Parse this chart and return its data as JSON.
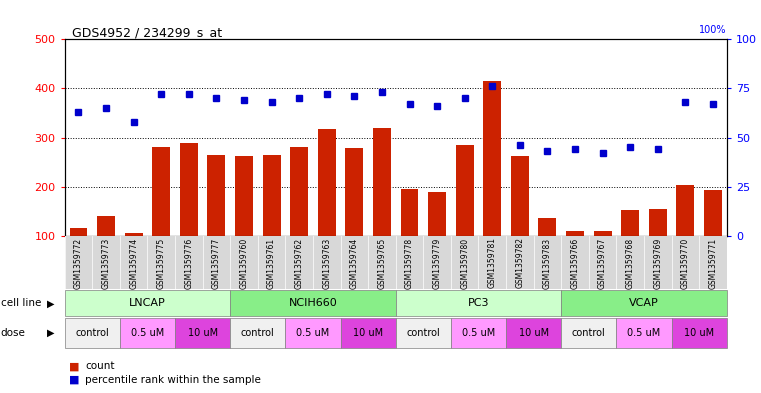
{
  "title": "GDS4952 / 234299_s_at",
  "samples": [
    "GSM1359772",
    "GSM1359773",
    "GSM1359774",
    "GSM1359775",
    "GSM1359776",
    "GSM1359777",
    "GSM1359760",
    "GSM1359761",
    "GSM1359762",
    "GSM1359763",
    "GSM1359764",
    "GSM1359765",
    "GSM1359778",
    "GSM1359779",
    "GSM1359780",
    "GSM1359781",
    "GSM1359782",
    "GSM1359783",
    "GSM1359766",
    "GSM1359767",
    "GSM1359768",
    "GSM1359769",
    "GSM1359770",
    "GSM1359771"
  ],
  "counts": [
    115,
    140,
    105,
    280,
    288,
    265,
    263,
    265,
    280,
    318,
    278,
    320,
    195,
    190,
    285,
    415,
    263,
    137,
    110,
    110,
    152,
    155,
    203,
    193
  ],
  "percentile_ranks": [
    63,
    65,
    58,
    72,
    72,
    70,
    69,
    68,
    70,
    72,
    71,
    73,
    67,
    66,
    70,
    76,
    46,
    43,
    44,
    42,
    45,
    44,
    68,
    67
  ],
  "cell_lines": [
    {
      "label": "LNCAP",
      "start": 0,
      "end": 6,
      "color": "#ccffcc"
    },
    {
      "label": "NCIH660",
      "start": 6,
      "end": 12,
      "color": "#88ee88"
    },
    {
      "label": "PC3",
      "start": 12,
      "end": 18,
      "color": "#ccffcc"
    },
    {
      "label": "VCAP",
      "start": 18,
      "end": 24,
      "color": "#88ee88"
    }
  ],
  "dose_groups": [
    {
      "label": "control",
      "start": 0,
      "end": 2,
      "color": "#f0f0f0"
    },
    {
      "label": "0.5 uM",
      "start": 2,
      "end": 4,
      "color": "#ff99ff"
    },
    {
      "label": "10 uM",
      "start": 4,
      "end": 6,
      "color": "#dd44dd"
    },
    {
      "label": "control",
      "start": 6,
      "end": 8,
      "color": "#f0f0f0"
    },
    {
      "label": "0.5 uM",
      "start": 8,
      "end": 10,
      "color": "#ff99ff"
    },
    {
      "label": "10 uM",
      "start": 10,
      "end": 12,
      "color": "#dd44dd"
    },
    {
      "label": "control",
      "start": 12,
      "end": 14,
      "color": "#f0f0f0"
    },
    {
      "label": "0.5 uM",
      "start": 14,
      "end": 16,
      "color": "#ff99ff"
    },
    {
      "label": "10 uM",
      "start": 16,
      "end": 18,
      "color": "#dd44dd"
    },
    {
      "label": "control",
      "start": 18,
      "end": 20,
      "color": "#f0f0f0"
    },
    {
      "label": "0.5 uM",
      "start": 20,
      "end": 22,
      "color": "#ff99ff"
    },
    {
      "label": "10 uM",
      "start": 22,
      "end": 24,
      "color": "#dd44dd"
    }
  ],
  "bar_color": "#cc2200",
  "dot_color": "#0000cc",
  "left_ylim": [
    100,
    500
  ],
  "right_ylim": [
    0,
    100
  ],
  "left_yticks": [
    100,
    200,
    300,
    400,
    500
  ],
  "right_yticks": [
    0,
    25,
    50,
    75,
    100
  ],
  "bg_color": "#ffffff"
}
